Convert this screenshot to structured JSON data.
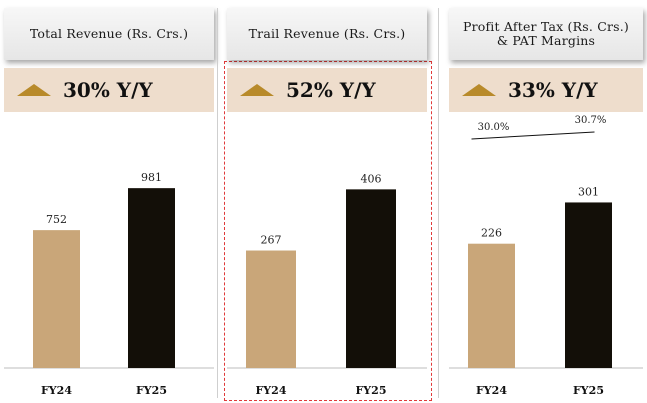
{
  "colors": {
    "fy24": "#c9a679",
    "fy25": "#130f08",
    "accent": "#b88a2a",
    "growth_bg": "#eeddcc"
  },
  "panels": [
    {
      "title": "Total Revenue (Rs. Crs.)",
      "growth": "30% Y/Y"
    },
    {
      "title": "Trail Revenue (Rs. Crs.)",
      "growth": "52% Y/Y"
    },
    {
      "title": "Profit After Tax (Rs. Crs.)\n& PAT Margins",
      "growth": "33% Y/Y"
    }
  ],
  "chart_data": [
    {
      "type": "bar",
      "title": "Total Revenue (Rs. Crs.)",
      "categories": [
        "FY24",
        "FY25"
      ],
      "values": [
        752,
        981
      ],
      "ylim": [
        0,
        1200
      ]
    },
    {
      "type": "bar",
      "title": "Trail Revenue (Rs. Crs.)",
      "categories": [
        "FY24",
        "FY25"
      ],
      "values": [
        267,
        406
      ],
      "ylim": [
        0,
        500
      ]
    },
    {
      "type": "bar",
      "title": "Profit After Tax (Rs. Crs.) & PAT Margins",
      "categories": [
        "FY24",
        "FY25"
      ],
      "values": [
        226,
        301
      ],
      "ylim": [
        0,
        400
      ],
      "margins": {
        "values": [
          30.0,
          30.7
        ],
        "labels": [
          "30.0%",
          "30.7%"
        ]
      }
    }
  ]
}
